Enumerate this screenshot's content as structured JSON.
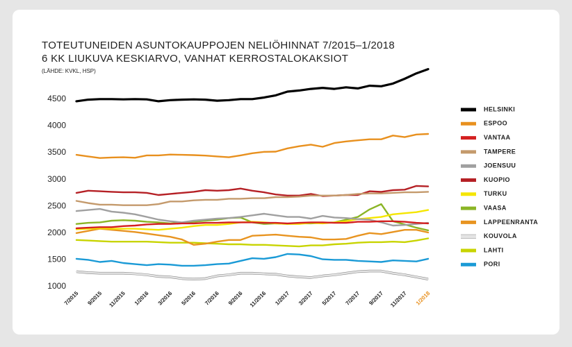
{
  "chart_data": {
    "type": "line",
    "title": "TOTEUTUNEIDEN ASUNTOKAUPPOJEN NELIÖHINNAT 7/2015–1/2018",
    "subtitle": "6 KK LIUKUVA KESKIARVO, VANHAT KERROSTALOKAKSIOT",
    "source": "(LÄHDE: KVKL, HSP)",
    "categories": [
      "7/2015",
      null,
      "9/2015",
      null,
      "11/2015",
      null,
      "1/2016",
      null,
      "3/2016",
      null,
      "5/2016",
      null,
      "7/2016",
      null,
      "9/2016",
      null,
      "11/2016",
      null,
      "1/2017",
      null,
      "3/2017",
      null,
      "5/2017",
      null,
      "7/2017",
      null,
      "9/2017",
      null,
      "11/2017",
      null,
      "1/2018"
    ],
    "last_category_color": "#e8901e",
    "ylim": [
      1000,
      5100
    ],
    "yticks": [
      1000,
      1500,
      2000,
      2500,
      3000,
      3500,
      4000,
      4500
    ],
    "grid": false,
    "legend": "right",
    "series": [
      {
        "name": "HELSINKI",
        "color": "#000000",
        "values": [
          4460,
          4490,
          4500,
          4500,
          4495,
          4500,
          4495,
          4460,
          4480,
          4490,
          4495,
          4490,
          4470,
          4480,
          4500,
          4500,
          4530,
          4570,
          4640,
          4660,
          4690,
          4710,
          4690,
          4720,
          4700,
          4750,
          4740,
          4790,
          4880,
          4980,
          5060
        ]
      },
      {
        "name": "ESPOO",
        "color": "#e8901e",
        "values": [
          3460,
          3430,
          3400,
          3410,
          3415,
          3405,
          3450,
          3450,
          3465,
          3460,
          3455,
          3445,
          3430,
          3415,
          3450,
          3490,
          3515,
          3520,
          3580,
          3620,
          3650,
          3610,
          3680,
          3710,
          3730,
          3750,
          3750,
          3820,
          3790,
          3840,
          3850
        ]
      },
      {
        "name": "VANTAA",
        "color": "#d42020",
        "values": [
          2090,
          2100,
          2110,
          2110,
          2130,
          2140,
          2160,
          2170,
          2170,
          2180,
          2180,
          2190,
          2190,
          2200,
          2200,
          2200,
          2190,
          2190,
          2180,
          2190,
          2200,
          2200,
          2190,
          2190,
          2210,
          2210,
          2220,
          2220,
          2210,
          2190,
          2180
        ]
      },
      {
        "name": "TAMPERE",
        "color": "#c49a6c",
        "values": [
          2600,
          2560,
          2530,
          2530,
          2520,
          2520,
          2520,
          2540,
          2590,
          2590,
          2610,
          2620,
          2620,
          2640,
          2640,
          2650,
          2650,
          2670,
          2670,
          2680,
          2700,
          2700,
          2700,
          2710,
          2730,
          2740,
          2740,
          2750,
          2760,
          2760,
          2770
        ]
      },
      {
        "name": "JOENSUU",
        "color": "#a0a0a0",
        "values": [
          2410,
          2430,
          2450,
          2400,
          2380,
          2350,
          2300,
          2250,
          2220,
          2200,
          2230,
          2250,
          2270,
          2280,
          2300,
          2330,
          2360,
          2330,
          2300,
          2300,
          2270,
          2320,
          2290,
          2280,
          2260,
          2250,
          2200,
          2140,
          2150,
          2170,
          2190
        ]
      },
      {
        "name": "KUOPIO",
        "color": "#b52025",
        "values": [
          2750,
          2790,
          2780,
          2770,
          2760,
          2760,
          2750,
          2710,
          2730,
          2750,
          2770,
          2800,
          2790,
          2800,
          2830,
          2790,
          2760,
          2720,
          2700,
          2700,
          2730,
          2690,
          2700,
          2710,
          2710,
          2780,
          2770,
          2800,
          2810,
          2880,
          2870
        ]
      },
      {
        "name": "TURKU",
        "color": "#f5e600",
        "values": [
          2070,
          2080,
          2090,
          2080,
          2080,
          2080,
          2070,
          2060,
          2080,
          2100,
          2130,
          2150,
          2150,
          2170,
          2200,
          2210,
          2200,
          2180,
          2170,
          2170,
          2190,
          2180,
          2200,
          2220,
          2260,
          2280,
          2300,
          2350,
          2370,
          2390,
          2430
        ]
      },
      {
        "name": "VAASA",
        "color": "#8bb526",
        "values": [
          2170,
          2190,
          2200,
          2230,
          2240,
          2230,
          2210,
          2200,
          2180,
          2190,
          2210,
          2230,
          2250,
          2280,
          2290,
          2200,
          2170,
          2180,
          2170,
          2180,
          2180,
          2190,
          2200,
          2250,
          2300,
          2440,
          2540,
          2220,
          2160,
          2100,
          2050
        ]
      },
      {
        "name": "LAPPEENRANTA",
        "color": "#e89420",
        "values": [
          2000,
          2040,
          2080,
          2060,
          2040,
          2020,
          1990,
          1960,
          1930,
          1880,
          1780,
          1800,
          1840,
          1870,
          1870,
          1950,
          1960,
          1970,
          1950,
          1930,
          1920,
          1880,
          1880,
          1890,
          1950,
          2000,
          1980,
          2020,
          2060,
          2060,
          2010
        ]
      },
      {
        "name": "KOUVOLA",
        "color": "#e4e4e4",
        "values": [
          1280,
          1260,
          1250,
          1250,
          1250,
          1240,
          1220,
          1190,
          1180,
          1150,
          1140,
          1150,
          1200,
          1220,
          1250,
          1250,
          1240,
          1230,
          1200,
          1180,
          1170,
          1200,
          1220,
          1250,
          1280,
          1290,
          1290,
          1250,
          1220,
          1180,
          1140
        ]
      },
      {
        "name": "LAHTI",
        "color": "#c8d400",
        "values": [
          1870,
          1860,
          1850,
          1840,
          1840,
          1840,
          1840,
          1830,
          1820,
          1820,
          1820,
          1810,
          1800,
          1790,
          1790,
          1780,
          1780,
          1770,
          1760,
          1750,
          1770,
          1770,
          1790,
          1800,
          1820,
          1830,
          1830,
          1840,
          1830,
          1860,
          1900
        ]
      },
      {
        "name": "PORI",
        "color": "#1a9ad6",
        "values": [
          1520,
          1500,
          1460,
          1480,
          1440,
          1420,
          1400,
          1420,
          1410,
          1390,
          1390,
          1400,
          1420,
          1430,
          1480,
          1530,
          1520,
          1550,
          1610,
          1600,
          1570,
          1510,
          1500,
          1500,
          1480,
          1470,
          1460,
          1490,
          1480,
          1470,
          1520
        ]
      }
    ]
  }
}
